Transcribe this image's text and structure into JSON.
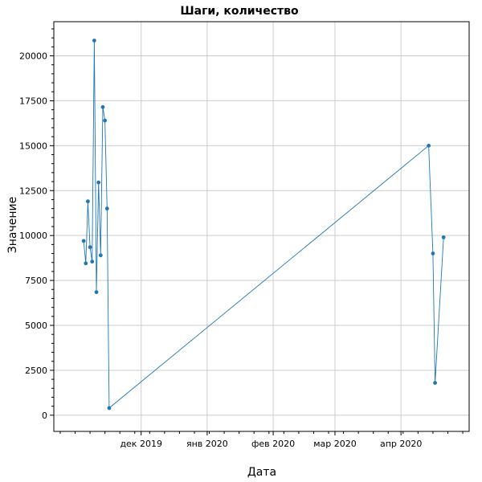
{
  "chart_data": {
    "type": "line",
    "title": "Шаги, количество",
    "xlabel": "Дата",
    "ylabel": "Значение",
    "grid": true,
    "xlim": [
      "2019-10-21",
      "2020-05-03"
    ],
    "ylim": [
      -900,
      21900
    ],
    "x_ticks": [
      {
        "date": "2019-12-01",
        "label": "дек 2019"
      },
      {
        "date": "2020-01-01",
        "label": "янв 2020"
      },
      {
        "date": "2020-02-01",
        "label": "фев 2020"
      },
      {
        "date": "2020-03-01",
        "label": "мар 2020"
      },
      {
        "date": "2020-04-01",
        "label": "апр 2020"
      }
    ],
    "y_ticks": [
      0,
      2500,
      5000,
      7500,
      10000,
      12500,
      15000,
      17500,
      20000
    ],
    "y_minor_step": 500,
    "color": "#1f77b4",
    "series": [
      {
        "points": [
          {
            "x": "2019-11-04",
            "y": 9700
          },
          {
            "x": "2019-11-05",
            "y": 8450
          },
          {
            "x": "2019-11-06",
            "y": 11900
          },
          {
            "x": "2019-11-07",
            "y": 9350
          },
          {
            "x": "2019-11-08",
            "y": 8550
          },
          {
            "x": "2019-11-09",
            "y": 20850
          },
          {
            "x": "2019-11-10",
            "y": 6850
          },
          {
            "x": "2019-11-11",
            "y": 12950
          },
          {
            "x": "2019-11-12",
            "y": 8900
          },
          {
            "x": "2019-11-13",
            "y": 17150
          },
          {
            "x": "2019-11-14",
            "y": 16400
          },
          {
            "x": "2019-11-15",
            "y": 11500
          },
          {
            "x": "2019-11-16",
            "y": 400
          },
          {
            "x": "2020-04-14",
            "y": 15000
          },
          {
            "x": "2020-04-16",
            "y": 9000
          },
          {
            "x": "2020-04-17",
            "y": 1800
          },
          {
            "x": "2020-04-21",
            "y": 9900
          }
        ]
      }
    ]
  }
}
